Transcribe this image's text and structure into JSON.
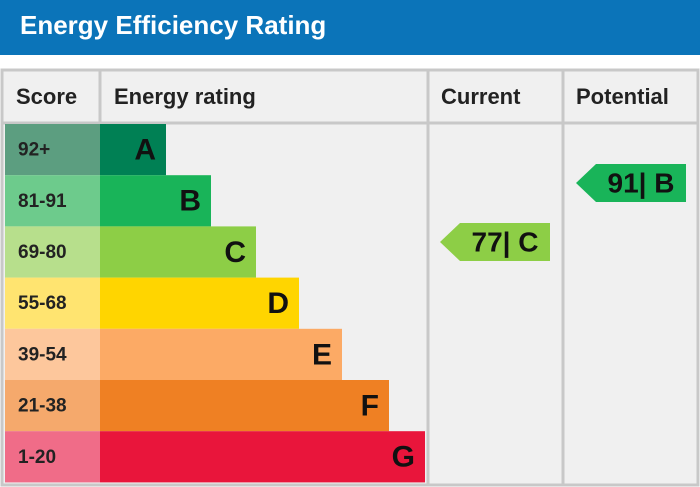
{
  "header": {
    "title": "Energy Efficiency Rating"
  },
  "table": {
    "columns": [
      "Score",
      "Energy rating",
      "Current",
      "Potential"
    ],
    "rows": [
      {
        "score": "92+",
        "band": "A",
        "color": "#008054",
        "score_color": "#5c9e80"
      },
      {
        "score": "81-91",
        "band": "B",
        "color": "#19b459",
        "score_color": "#6dcb8c"
      },
      {
        "score": "69-80",
        "band": "C",
        "color": "#8dce46",
        "score_color": "#b7df8c"
      },
      {
        "score": "55-68",
        "band": "D",
        "color": "#ffd500",
        "score_color": "#ffe470"
      },
      {
        "score": "39-54",
        "band": "E",
        "color": "#fcaa65",
        "score_color": "#fdc79c"
      },
      {
        "score": "21-38",
        "band": "F",
        "color": "#ef8023",
        "score_color": "#f5a96c"
      },
      {
        "score": "1-20",
        "band": "G",
        "color": "#e9153b",
        "score_color": "#f06c88"
      }
    ],
    "current": {
      "label": "77| C",
      "color": "#8dce46"
    },
    "potential": {
      "label": "91| B",
      "color": "#19b459"
    }
  }
}
